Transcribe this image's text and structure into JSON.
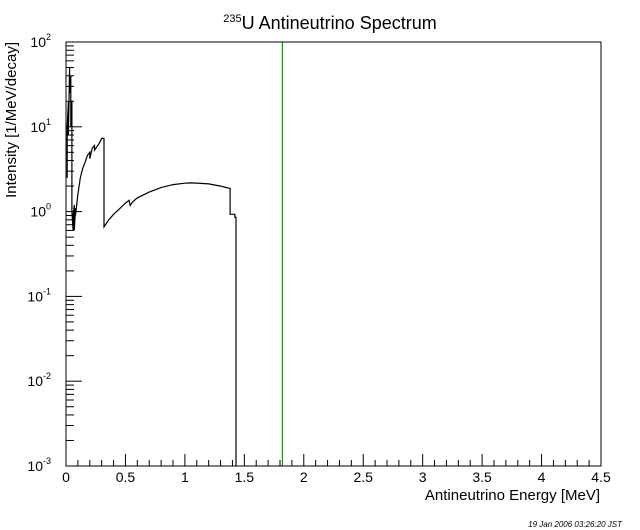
{
  "chart_data": {
    "type": "line",
    "title": {
      "isotope_mass": "235",
      "text": "U Antineutrino Spectrum"
    },
    "xlabel": "Antineutrino Energy [MeV]",
    "ylabel": "Intensity [1/MeV/decay]",
    "xlim": [
      0,
      4.5
    ],
    "ylim": [
      0.001,
      100
    ],
    "yscale": "log",
    "grid": false,
    "x_ticks": [
      {
        "value": 0,
        "label": "0"
      },
      {
        "value": 0.5,
        "label": "0.5"
      },
      {
        "value": 1,
        "label": "1"
      },
      {
        "value": 1.5,
        "label": "1.5"
      },
      {
        "value": 2,
        "label": "2"
      },
      {
        "value": 2.5,
        "label": "2.5"
      },
      {
        "value": 3,
        "label": "3"
      },
      {
        "value": 3.5,
        "label": "3.5"
      },
      {
        "value": 4,
        "label": "4"
      },
      {
        "value": 4.5,
        "label": "4.5"
      }
    ],
    "y_ticks": [
      {
        "value": 100,
        "base": "10",
        "exp": "2"
      },
      {
        "value": 10,
        "base": "10",
        "exp": "1"
      },
      {
        "value": 1,
        "base": "10",
        "exp": "0"
      },
      {
        "value": 0.1,
        "base": "10",
        "exp": "-1"
      },
      {
        "value": 0.01,
        "base": "10",
        "exp": "-2"
      },
      {
        "value": 0.001,
        "base": "10",
        "exp": "-3"
      }
    ],
    "series": [
      {
        "color": "#000000",
        "x": [
          0.01,
          0.01,
          0.02,
          0.02,
          0.03,
          0.03,
          0.04,
          0.04,
          0.05,
          0.05,
          0.06,
          0.06,
          0.07,
          0.07,
          0.08,
          0.08,
          0.1,
          0.12,
          0.14,
          0.16,
          0.18,
          0.2,
          0.2,
          0.22,
          0.24,
          0.24,
          0.28,
          0.3,
          0.32,
          0.32,
          0.36,
          0.4,
          0.45,
          0.5,
          0.53,
          0.54,
          0.56,
          0.6,
          0.7,
          0.8,
          0.9,
          1.0,
          1.05,
          1.1,
          1.2,
          1.3,
          1.38,
          1.38,
          1.42,
          1.42,
          1.43,
          1.43
        ],
        "y": [
          2.5,
          10,
          20,
          8,
          50,
          25,
          40,
          10,
          20,
          1.0,
          0.6,
          0.9,
          1.2,
          0.6,
          1.1,
          0.9,
          1.6,
          2.5,
          3.2,
          3.8,
          4.6,
          5,
          4.2,
          5.6,
          6,
          5.3,
          6.4,
          7.3,
          7.3,
          0.66,
          0.8,
          0.93,
          1.08,
          1.26,
          1.36,
          1.18,
          1.3,
          1.45,
          1.7,
          1.92,
          2.08,
          2.16,
          2.18,
          2.17,
          2.12,
          2.0,
          1.87,
          0.93,
          0.93,
          0.86,
          0.86,
          0.001
        ]
      }
    ],
    "vertical_line": {
      "x": 1.82,
      "color": "#00a000"
    }
  },
  "timestamp": "19 Jan 2006 03:26:20 JST"
}
